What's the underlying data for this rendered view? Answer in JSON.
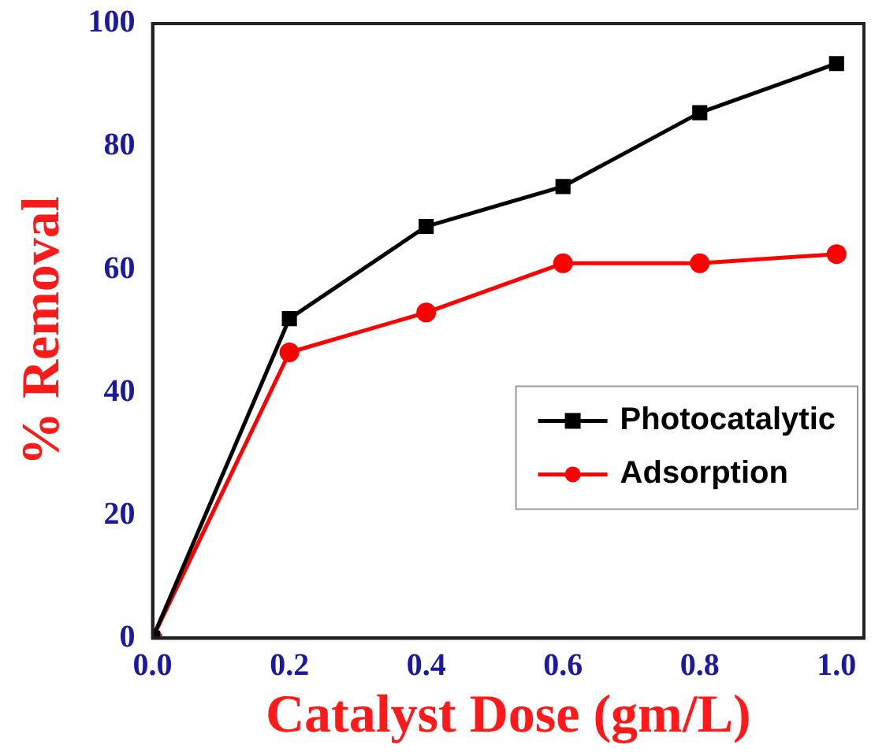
{
  "chart_data": {
    "type": "line",
    "xlabel": "Catalyst Dose (gm/L)",
    "ylabel": "% Removal",
    "x": [
      0,
      0.2,
      0.4,
      0.6,
      0.8,
      1.0
    ],
    "series": [
      {
        "name": "Photocatalytic",
        "color": "#000000",
        "marker": "square",
        "values": [
          0,
          52,
          67,
          73.5,
          85.5,
          93.5
        ]
      },
      {
        "name": "Adsorption",
        "color": "#ff0000",
        "marker": "circle",
        "values": [
          0,
          46.5,
          53,
          61,
          61,
          62.5
        ]
      }
    ],
    "xlim": [
      0,
      1.04
    ],
    "xticks": [
      {
        "value": 0,
        "label": "0.0"
      },
      0.2,
      0.4,
      0.6,
      0.8,
      {
        "value": 1,
        "label": "1.0"
      }
    ],
    "ylim": [
      0,
      100
    ],
    "yticks": [
      0,
      20,
      40,
      60,
      80,
      100
    ],
    "grid": false,
    "legend": "right",
    "line_style": "solid"
  }
}
